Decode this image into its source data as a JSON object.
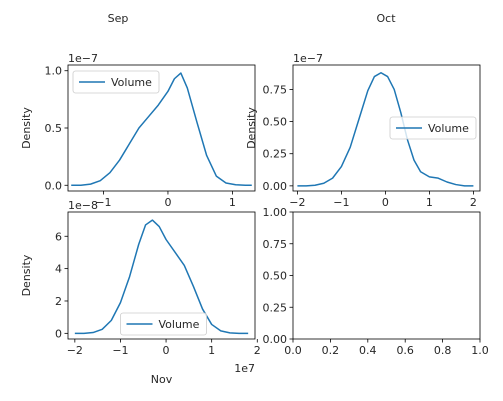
{
  "figure": {
    "titles": {
      "sep": "Sep",
      "oct": "Oct",
      "nov": "Nov"
    }
  },
  "chart_data": [
    {
      "type": "line",
      "title": "Sep",
      "ylabel": "Density",
      "xlabel": "",
      "x_offset_label": "",
      "y_offset_label": "1e−7",
      "x_ticks": [
        {
          "v": -1,
          "label": "−1"
        },
        {
          "v": 0,
          "label": "0"
        },
        {
          "v": 1,
          "label": "1"
        }
      ],
      "y_ticks": [
        {
          "v": 0,
          "label": "0.0"
        },
        {
          "v": 0.5,
          "label": "0.5"
        },
        {
          "v": 1.0,
          "label": "1.0"
        }
      ],
      "xlim": [
        -1.55,
        1.35
      ],
      "ylim": [
        -0.05,
        1.05
      ],
      "legend": "top-left",
      "series": [
        {
          "name": "Volume",
          "color": "#1f77b4",
          "x": [
            -1.5,
            -1.35,
            -1.2,
            -1.05,
            -0.9,
            -0.75,
            -0.6,
            -0.45,
            -0.3,
            -0.15,
            0.0,
            0.1,
            0.2,
            0.3,
            0.45,
            0.6,
            0.75,
            0.9,
            1.05,
            1.2,
            1.3
          ],
          "y": [
            0.0,
            0.0,
            0.01,
            0.04,
            0.11,
            0.22,
            0.36,
            0.5,
            0.6,
            0.7,
            0.82,
            0.93,
            0.98,
            0.85,
            0.55,
            0.26,
            0.08,
            0.02,
            0.005,
            0.0,
            0.0
          ]
        }
      ]
    },
    {
      "type": "line",
      "title": "Oct",
      "ylabel": "Density",
      "xlabel": "",
      "x_offset_label": "",
      "y_offset_label": "1e−7",
      "x_ticks": [
        {
          "v": -2,
          "label": "−2"
        },
        {
          "v": -1,
          "label": "−1"
        },
        {
          "v": 0,
          "label": "0"
        },
        {
          "v": 1,
          "label": "1"
        },
        {
          "v": 2,
          "label": "2"
        }
      ],
      "y_ticks": [
        {
          "v": 0,
          "label": "0.00"
        },
        {
          "v": 0.25,
          "label": "0.25"
        },
        {
          "v": 0.5,
          "label": "0.50"
        },
        {
          "v": 0.75,
          "label": "0.75"
        }
      ],
      "xlim": [
        -2.1,
        2.15
      ],
      "ylim": [
        -0.04,
        0.94
      ],
      "legend": "center-right",
      "series": [
        {
          "name": "Volume",
          "color": "#1f77b4",
          "x": [
            -2.0,
            -1.8,
            -1.6,
            -1.4,
            -1.2,
            -1.0,
            -0.8,
            -0.6,
            -0.4,
            -0.25,
            -0.1,
            0.05,
            0.2,
            0.35,
            0.5,
            0.65,
            0.8,
            1.0,
            1.2,
            1.4,
            1.6,
            1.8,
            2.0
          ],
          "y": [
            0.0,
            0.0,
            0.005,
            0.02,
            0.06,
            0.15,
            0.3,
            0.52,
            0.74,
            0.85,
            0.88,
            0.85,
            0.75,
            0.57,
            0.36,
            0.2,
            0.11,
            0.07,
            0.06,
            0.03,
            0.01,
            0.0,
            0.0
          ]
        }
      ]
    },
    {
      "type": "line",
      "title": "",
      "ylabel": "Density",
      "xlabel": "Nov",
      "x_offset_label": "1e7",
      "y_offset_label": "1e−8",
      "x_ticks": [
        {
          "v": -2,
          "label": "−2"
        },
        {
          "v": -1,
          "label": "−1"
        },
        {
          "v": 0,
          "label": "0"
        },
        {
          "v": 1,
          "label": "1"
        },
        {
          "v": 2,
          "label": "2"
        }
      ],
      "y_ticks": [
        {
          "v": 0,
          "label": "0"
        },
        {
          "v": 2,
          "label": "2"
        },
        {
          "v": 4,
          "label": "4"
        },
        {
          "v": 6,
          "label": "6"
        }
      ],
      "xlim": [
        -2.15,
        1.95
      ],
      "ylim": [
        -0.35,
        7.5
      ],
      "legend": "bottom-center",
      "series": [
        {
          "name": "Volume",
          "color": "#1f77b4",
          "x": [
            -2.0,
            -1.8,
            -1.6,
            -1.4,
            -1.2,
            -1.0,
            -0.8,
            -0.6,
            -0.45,
            -0.3,
            -0.15,
            0.0,
            0.2,
            0.4,
            0.6,
            0.8,
            1.0,
            1.2,
            1.4,
            1.6,
            1.8
          ],
          "y": [
            0.0,
            0.0,
            0.05,
            0.25,
            0.8,
            1.9,
            3.5,
            5.5,
            6.7,
            7.0,
            6.6,
            5.8,
            5.0,
            4.2,
            2.9,
            1.5,
            0.55,
            0.15,
            0.03,
            0.0,
            0.0
          ]
        }
      ]
    },
    {
      "type": "line",
      "title": "",
      "ylabel": "",
      "xlabel": "",
      "x_offset_label": "",
      "y_offset_label": "",
      "x_ticks": [
        {
          "v": 0,
          "label": "0.0"
        },
        {
          "v": 0.2,
          "label": "0.2"
        },
        {
          "v": 0.4,
          "label": "0.4"
        },
        {
          "v": 0.6,
          "label": "0.6"
        },
        {
          "v": 0.8,
          "label": "0.8"
        },
        {
          "v": 1.0,
          "label": "1.0"
        }
      ],
      "y_ticks": [
        {
          "v": 0,
          "label": "0.00"
        },
        {
          "v": 0.25,
          "label": "0.25"
        },
        {
          "v": 0.5,
          "label": "0.50"
        },
        {
          "v": 0.75,
          "label": "0.75"
        },
        {
          "v": 1.0,
          "label": "1.00"
        }
      ],
      "xlim": [
        0,
        1
      ],
      "ylim": [
        0,
        1
      ],
      "legend": "none",
      "series": []
    }
  ]
}
